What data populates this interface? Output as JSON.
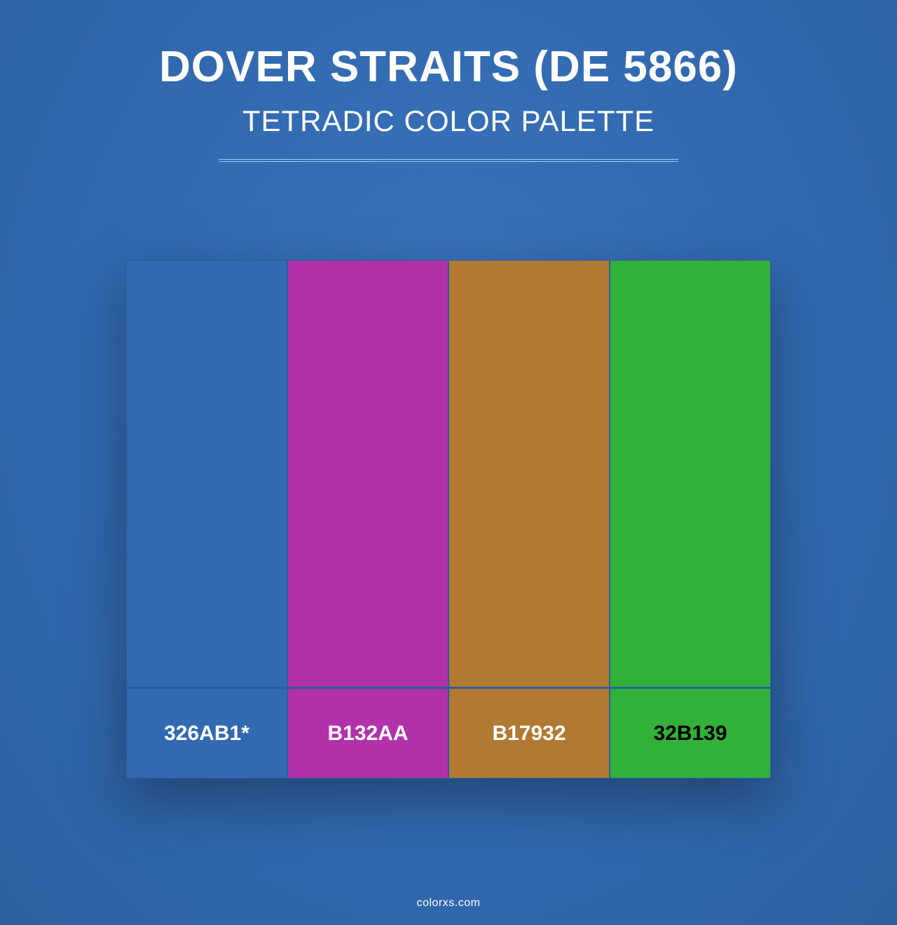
{
  "header": {
    "title": "DOVER STRAITS (DE 5866)",
    "subtitle": "TETRADIC COLOR PALETTE"
  },
  "palette": {
    "colors": [
      {
        "hex": "#326ab1",
        "label": "326AB1*",
        "labelColor": "light"
      },
      {
        "hex": "#b132aa",
        "label": "B132AA",
        "labelColor": "light"
      },
      {
        "hex": "#b17932",
        "label": "B17932",
        "labelColor": "light"
      },
      {
        "hex": "#32b139",
        "label": "32B139",
        "labelColor": "dark"
      }
    ],
    "borderColor": "#2c5d9e"
  },
  "footer": {
    "text": "colorxs.com"
  },
  "styling": {
    "background_color": "#326ab1",
    "text_color": "#ffffff",
    "title_fontsize": 62,
    "subtitle_fontsize": 42,
    "label_fontsize": 30,
    "container_width": 920,
    "swatch_height": 610,
    "label_height": 130
  }
}
